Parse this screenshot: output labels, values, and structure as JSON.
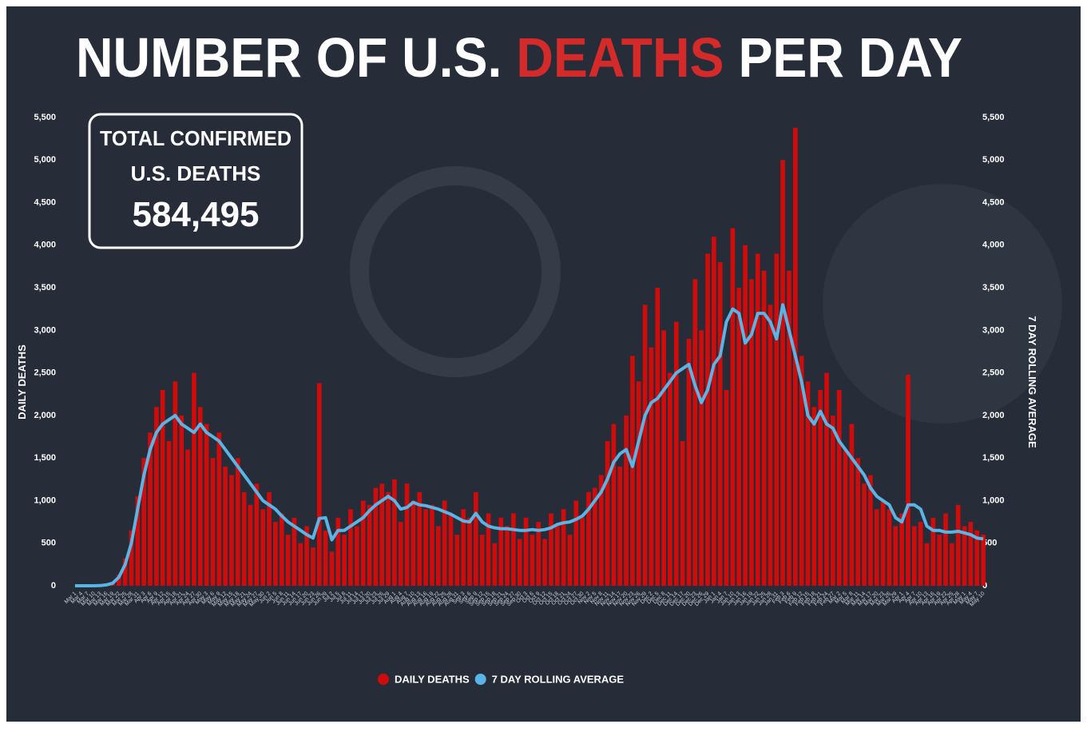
{
  "chart_data": {
    "type": "bar+line",
    "title": {
      "start": "NUMBER OF U.S.",
      "highlight": "DEATHS",
      "end": "PER DAY"
    },
    "annotation": {
      "line1": "TOTAL CONFIRMED",
      "line2": "U.S. DEATHS",
      "total": "584,495"
    },
    "ylabel": "DAILY DEATHS",
    "y2label": "7 DAY ROLLING AVERAGE",
    "categories": [
      "Mar 1",
      "Mar 4",
      "Mar 7",
      "Mar 10",
      "Mar 13",
      "Mar 16",
      "Mar 19",
      "Mar 22",
      "Mar 25",
      "Mar 28",
      "Mar 31",
      "Apr 3",
      "Apr 6",
      "Apr 9",
      "Apr 12",
      "Apr 15",
      "Apr 18",
      "Apr 21",
      "Apr 24",
      "Apr 27",
      "Apr 30",
      "May 3",
      "May 6",
      "May 9",
      "May 12",
      "May 15",
      "May 18",
      "May 21",
      "May 24",
      "May 27",
      "May 30",
      "Jun 2",
      "Jun 5",
      "Jun 8",
      "Jun 11",
      "Jun 14",
      "Jun 17",
      "Jun 20",
      "Jun 23",
      "Jun 26",
      "Jun 29",
      "Jul 2",
      "Jul 5",
      "Jul 8",
      "Jul 11",
      "Jul 14",
      "Jul 17",
      "Jul 20",
      "Jul 23",
      "Jul 26",
      "Jul 29",
      "Aug 1",
      "Aug 4",
      "Aug 7",
      "Aug 10",
      "Aug 13",
      "Aug 16",
      "Aug 19",
      "Aug 22",
      "Aug 25",
      "Aug 28",
      "Aug 31",
      "Sep 3",
      "Sep 6",
      "Sep 9",
      "Sep 12",
      "Sep 15",
      "Sep 18",
      "Sep 21",
      "Sep 24",
      "Sep 27",
      "Sep 30",
      "Oct 3",
      "Oct 6",
      "Oct 9",
      "Oct 12",
      "Oct 15",
      "Oct 18",
      "Oct 21",
      "Oct 24",
      "Oct 27",
      "Oct 30",
      "Nov 2",
      "Nov 5",
      "Nov 8",
      "Nov 11",
      "Nov 14",
      "Nov 17",
      "Nov 20",
      "Nov 23",
      "Nov 26",
      "Nov 29",
      "Dec 2",
      "Dec 5",
      "Dec 8",
      "Dec 11",
      "Dec 14",
      "Dec 17",
      "Dec 20",
      "Dec 23",
      "Dec 26",
      "Dec 29",
      "Jan 1",
      "Jan 4",
      "Jan 7",
      "Jan 10",
      "Jan 13",
      "Jan 16",
      "Jan 19",
      "Jan 22",
      "Jan 25",
      "Jan 28",
      "Jan 31",
      "Feb 3",
      "Feb 6",
      "Feb 9",
      "Feb 12",
      "Feb 15",
      "Feb 18",
      "Feb 21",
      "Feb 24",
      "Feb 27",
      "Mar 2",
      "Mar 5",
      "Mar 8",
      "Mar 11",
      "Mar 14",
      "Mar 17",
      "Mar 20",
      "Mar 23",
      "Mar 26",
      "Mar 29",
      "Apr 1",
      "Apr 4",
      "Apr 7",
      "Apr 10",
      "Apr 13",
      "Apr 16",
      "Apr 19",
      "Apr 22",
      "Apr 25",
      "Apr 28",
      "May 1",
      "May 4",
      "May 7",
      "May 10"
    ],
    "series": [
      {
        "name": "DAILY DEATHS",
        "type": "bar",
        "color": "#d10a0a",
        "values": [
          0,
          0,
          0,
          0,
          3,
          12,
          40,
          130,
          320,
          650,
          1050,
          1500,
          1800,
          2100,
          2300,
          1700,
          2400,
          2000,
          1600,
          2500,
          2100,
          1900,
          1500,
          1800,
          1400,
          1300,
          1500,
          1100,
          950,
          1200,
          900,
          1100,
          750,
          850,
          600,
          800,
          500,
          700,
          450,
          2380,
          650,
          400,
          800,
          600,
          900,
          700,
          1000,
          950,
          1150,
          1200,
          1100,
          1250,
          750,
          1200,
          1000,
          1100,
          900,
          950,
          700,
          1000,
          850,
          600,
          900,
          800,
          1100,
          600,
          850,
          500,
          800,
          700,
          850,
          550,
          800,
          600,
          750,
          550,
          850,
          700,
          900,
          600,
          1000,
          800,
          1100,
          1150,
          1300,
          1700,
          1900,
          1400,
          2000,
          2700,
          2400,
          3300,
          2800,
          3500,
          3000,
          2500,
          3100,
          1700,
          2900,
          3600,
          3000,
          3900,
          4100,
          3800,
          2300,
          4200,
          3500,
          4000,
          3600,
          3900,
          3700,
          3300,
          3900,
          5000,
          3700,
          5380,
          2700,
          2400,
          2100,
          2300,
          2500,
          2000,
          2300,
          1600,
          1900,
          1500,
          1200,
          1300,
          900,
          1000,
          900,
          700,
          850,
          2480,
          700,
          750,
          500,
          800,
          600,
          850,
          500,
          950,
          700,
          750,
          650,
          600
        ]
      },
      {
        "name": "7 DAY ROLLING AVERAGE",
        "type": "line",
        "axis": "y2",
        "color": "#5ab4e5",
        "values": [
          0,
          0,
          0,
          0,
          2,
          10,
          30,
          100,
          250,
          500,
          900,
          1300,
          1600,
          1800,
          1900,
          1950,
          2000,
          1900,
          1850,
          1800,
          1900,
          1800,
          1750,
          1700,
          1600,
          1500,
          1400,
          1300,
          1200,
          1100,
          1000,
          950,
          900,
          820,
          750,
          700,
          650,
          600,
          560,
          790,
          800,
          540,
          650,
          650,
          700,
          750,
          800,
          880,
          950,
          1000,
          1050,
          1000,
          900,
          920,
          980,
          950,
          940,
          920,
          900,
          870,
          840,
          800,
          760,
          750,
          850,
          750,
          700,
          680,
          670,
          670,
          660,
          650,
          650,
          660,
          650,
          660,
          680,
          720,
          740,
          750,
          780,
          820,
          900,
          1000,
          1100,
          1250,
          1450,
          1550,
          1600,
          1400,
          1700,
          2000,
          2150,
          2200,
          2300,
          2400,
          2500,
          2550,
          2600,
          2350,
          2150,
          2300,
          2600,
          2700,
          3100,
          3250,
          3200,
          2850,
          2950,
          3200,
          3200,
          3100,
          2900,
          3300,
          3000,
          2700,
          2400,
          2000,
          1900,
          2050,
          1900,
          1850,
          1700,
          1600,
          1500,
          1400,
          1300,
          1150,
          1050,
          1000,
          950,
          800,
          750,
          950,
          950,
          900,
          700,
          650,
          650,
          630,
          630,
          640,
          620,
          600,
          560,
          550
        ]
      }
    ],
    "ylim": [
      0,
      5500
    ],
    "yticks": [
      0,
      500,
      {
        "value": 1000,
        "label": "1,000"
      },
      {
        "value": 1500,
        "label": "1,500"
      },
      {
        "value": 2000,
        "label": "2,000"
      },
      {
        "value": 2500,
        "label": "2,500"
      },
      {
        "value": 3000,
        "label": "3,000"
      },
      {
        "value": 3500,
        "label": "3,500"
      },
      {
        "value": 4000,
        "label": "4,000"
      },
      {
        "value": 4500,
        "label": "4,500"
      },
      {
        "value": 5000,
        "label": "5,000"
      },
      {
        "value": 5500,
        "label": "5,500"
      }
    ],
    "y2lim": [
      0,
      5500
    ],
    "y2ticks": [
      0,
      500,
      {
        "value": 1000,
        "label": "1,000"
      },
      {
        "value": 1500,
        "label": "1,500"
      },
      {
        "value": 2000,
        "label": "2,000"
      },
      {
        "value": 2500,
        "label": "2,500"
      },
      {
        "value": 3000,
        "label": "3,000"
      },
      {
        "value": 3500,
        "label": "3,500"
      },
      {
        "value": 4000,
        "label": "4,000"
      },
      {
        "value": 4500,
        "label": "4,500"
      },
      {
        "value": 5000,
        "label": "5,000"
      },
      {
        "value": 5500,
        "label": "5,500"
      }
    ],
    "title_highlight_color": "#d42a2a"
  }
}
